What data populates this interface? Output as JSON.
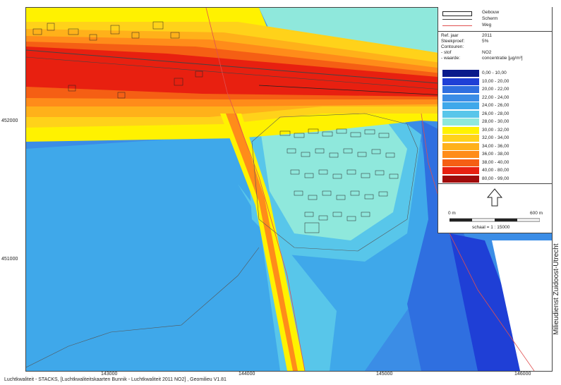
{
  "legend": {
    "lines": [
      {
        "label": "Gebouw",
        "color": "#222222"
      },
      {
        "label": "Scherm",
        "color": "#444444"
      },
      {
        "label": "Weg",
        "color": "#e05050"
      }
    ],
    "meta": [
      {
        "key": "Ref. jaar",
        "value": "2011"
      },
      {
        "key": "Steekproef:",
        "value": "5%"
      },
      {
        "key": "Contouren:",
        "value": ""
      },
      {
        "key": "- stof",
        "value": "NO2"
      },
      {
        "key": "- waarde:",
        "value": "concentratie [µg/m³]"
      }
    ],
    "classes": [
      {
        "label": "0,00 - 10,00",
        "color": "#0a1a8c"
      },
      {
        "label": "10,00 - 20,00",
        "color": "#1f3fd6"
      },
      {
        "label": "20,00 - 22,00",
        "color": "#2f6fe0"
      },
      {
        "label": "22,00 - 24,00",
        "color": "#3b8de6"
      },
      {
        "label": "24,00 - 26,00",
        "color": "#3fa8ea"
      },
      {
        "label": "26,00 - 28,00",
        "color": "#58c6ea"
      },
      {
        "label": "28,00 - 30,00",
        "color": "#8fe8dc"
      },
      {
        "label": "30,00 - 32,00",
        "color": "#fff200"
      },
      {
        "label": "32,00 - 34,00",
        "color": "#ffd21a"
      },
      {
        "label": "34,00 - 36,00",
        "color": "#ffb11a"
      },
      {
        "label": "36,00 - 38,00",
        "color": "#ff8c1a"
      },
      {
        "label": "38,00 - 40,00",
        "color": "#f55f14"
      },
      {
        "label": "40,00 - 80,00",
        "color": "#e82010"
      },
      {
        "label": "80,00 - 99,00",
        "color": "#a00a0a"
      }
    ],
    "scale_start": "0 m",
    "scale_end": "600 m",
    "scale_text": "schaal = 1 : 15000"
  },
  "axes": {
    "y_ticks": [
      "452000",
      "451000"
    ],
    "x_ticks": [
      "143000",
      "144000",
      "145000",
      "146000"
    ]
  },
  "footer": "Luchtkwaliteit - STACKS, [Luchtkwaliteitskaarten Bunnik - Luchtkwaliteit 2011 NO2] , Geomilieu V1.81",
  "side_label": "Milieudienst Zuidoost-Utrecht"
}
